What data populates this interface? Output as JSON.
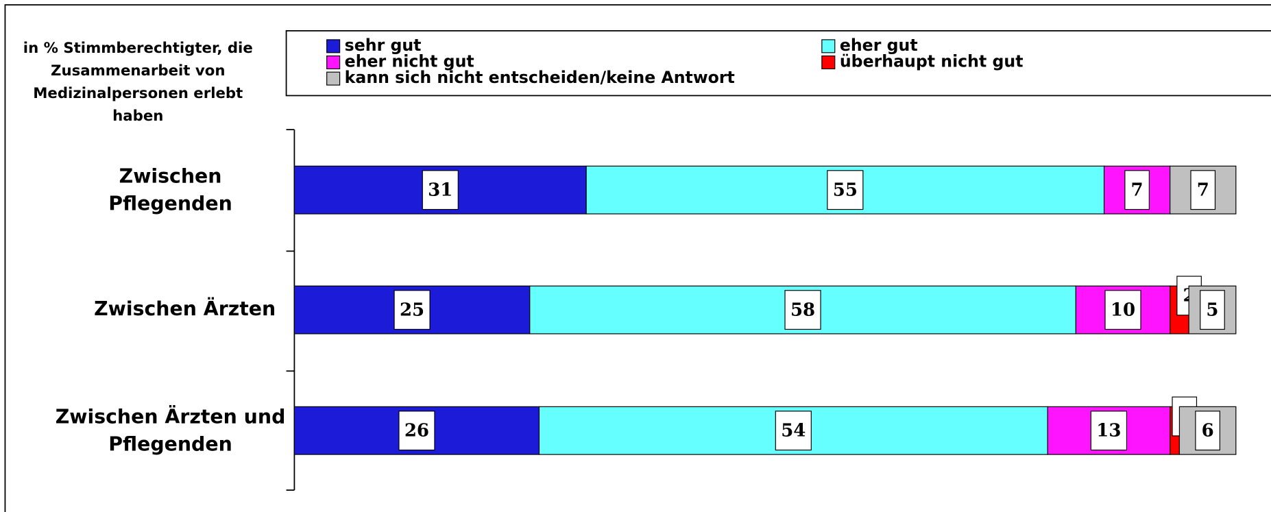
{
  "chart_data": {
    "type": "stacked-barh",
    "title": [
      "in % Stimmberechtigter, die",
      "Zusammenarbeit von",
      "Medizinalpersonen erlebt",
      "haben"
    ],
    "categories": [
      "Zwischen Pflegenden",
      "Zwischen Ärzten",
      "Zwischen Ärzten und Pflegenden"
    ],
    "xlim": [
      0,
      100
    ],
    "series": [
      {
        "name": "sehr gut",
        "color": "#1c1cd8",
        "values": [
          31,
          25,
          26
        ]
      },
      {
        "name": "eher gut",
        "color": "#66ffff",
        "values": [
          55,
          58,
          54
        ]
      },
      {
        "name": "eher nicht gut",
        "color": "#ff14ff",
        "values": [
          7,
          10,
          13
        ]
      },
      {
        "name": "überhaupt nicht gut",
        "color": "#ff0000",
        "values": [
          null,
          2,
          1
        ]
      },
      {
        "name": "kann sich nicht entscheiden/keine Antwort",
        "color": "#c0c0c0",
        "values": [
          7,
          5,
          6
        ]
      }
    ]
  }
}
